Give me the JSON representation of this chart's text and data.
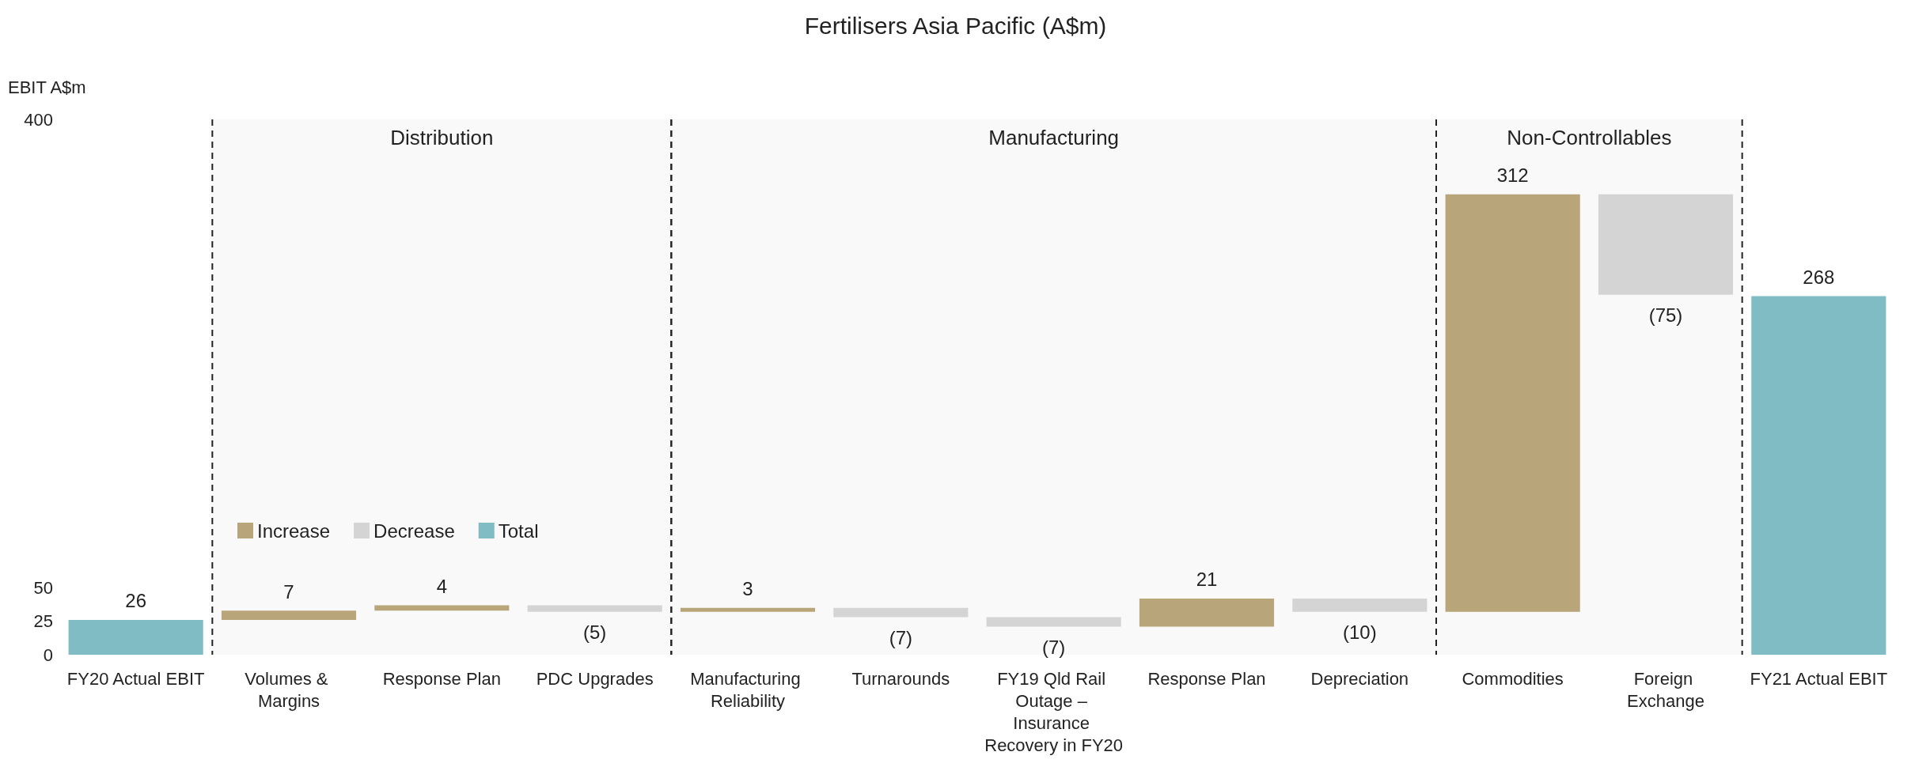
{
  "chart_data": {
    "type": "bar",
    "title": "Fertilisers Asia Pacific (A$m)",
    "ylabel": "EBIT A$m",
    "categories": [
      "FY20 Actual EBIT",
      "Volumes & Margins",
      "Response Plan",
      "PDC Upgrades",
      "Manufacturing Reliability",
      "Turnarounds",
      "FY19 Qld Rail Outage – Insurance Recovery in FY20",
      "Response Plan",
      "Depreciation",
      "Commodities",
      "Foreign Exchange",
      "FY21 Actual EBIT"
    ],
    "series": [
      {
        "name": "Increase",
        "color": "#b8a67a",
        "base": [
          null,
          26,
          33,
          null,
          32,
          null,
          null,
          21,
          null,
          32,
          null,
          null
        ],
        "values": [
          null,
          7,
          4,
          null,
          3,
          null,
          null,
          21,
          null,
          312,
          null,
          null
        ]
      },
      {
        "name": "Decrease",
        "color": "#d4d4d4",
        "base": [
          null,
          null,
          null,
          32,
          null,
          28,
          21,
          null,
          32,
          null,
          269,
          null
        ],
        "values": [
          null,
          null,
          null,
          5,
          null,
          7,
          7,
          null,
          10,
          null,
          75,
          null
        ]
      },
      {
        "name": "Total",
        "color": "#80bcc4",
        "base": [
          0,
          null,
          null,
          null,
          null,
          null,
          null,
          null,
          null,
          null,
          null,
          0
        ],
        "values": [
          26,
          null,
          null,
          null,
          null,
          null,
          null,
          null,
          null,
          null,
          null,
          268
        ]
      }
    ],
    "value_labels": [
      "26",
      "7",
      "4",
      "(5)",
      "3",
      "(7)",
      "(7)",
      "21",
      "(10)",
      "312",
      "(75)",
      "268"
    ],
    "ylim": [
      0,
      400
    ],
    "yticks": [
      0,
      25,
      50,
      400
    ],
    "bands": [
      {
        "axis": "x",
        "from": "Volumes & Margins",
        "to": "PDC Upgrades",
        "label": "Distribution"
      },
      {
        "axis": "x",
        "from": "Manufacturing Reliability",
        "to": "Depreciation",
        "label": "Manufacturing"
      },
      {
        "axis": "x",
        "from": "Commodities",
        "to": "Foreign Exchange",
        "label": "Non-Controllables"
      }
    ],
    "grid": false,
    "legend": "bottom left"
  }
}
